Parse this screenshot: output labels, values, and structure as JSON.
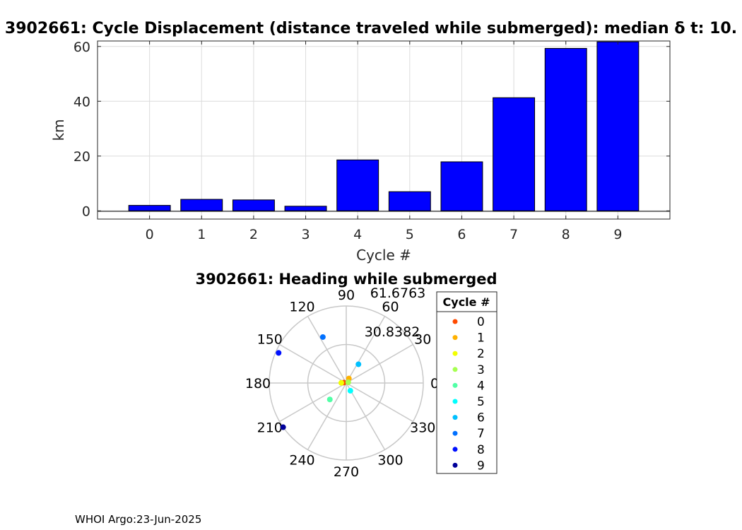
{
  "footer": "WHOI Argo:23-Jun-2025",
  "colors": {
    "bar": "#0000ff",
    "grid": "#dcdcdc",
    "polar_grid": "#c8c8c8",
    "cycle_colors": [
      "#ff4a00",
      "#ffb100",
      "#f2ff00",
      "#a6ff51",
      "#51ffa6",
      "#00ffff",
      "#00c0ff",
      "#0070ff",
      "#0010ff",
      "#00009a"
    ]
  },
  "chart_data": [
    {
      "type": "bar",
      "title": "3902661: Cycle Displacement (distance traveled while submerged):   median δ t: 10.",
      "xlabel": "Cycle #",
      "ylabel": "km",
      "categories": [
        "0",
        "1",
        "2",
        "3",
        "4",
        "5",
        "6",
        "7",
        "8",
        "9"
      ],
      "values": [
        2,
        4.2,
        4,
        1.7,
        18.6,
        7,
        17.9,
        41.3,
        59.3,
        61.7
      ],
      "xlim": [
        -1,
        10
      ],
      "ylim": [
        -3,
        62
      ],
      "yticks": [
        0,
        20,
        40,
        60
      ],
      "grid": true
    },
    {
      "type": "scatter",
      "projection": "polar",
      "title": "3902661: Heading while submerged",
      "angle_ticks": [
        "0",
        "30",
        "60",
        "90",
        "120",
        "150",
        "180",
        "210",
        "240",
        "270",
        "300",
        "330"
      ],
      "radial_ticks": [
        "30.8382",
        "61.6763"
      ],
      "rmax": 61.6763,
      "points": [
        {
          "cycle": "0",
          "angle": 170,
          "r": 2
        },
        {
          "cycle": "1",
          "angle": 60,
          "r": 4.2
        },
        {
          "cycle": "2",
          "angle": 178,
          "r": 4
        },
        {
          "cycle": "3",
          "angle": 20,
          "r": 1.7
        },
        {
          "cycle": "4",
          "angle": 225,
          "r": 18.6
        },
        {
          "cycle": "5",
          "angle": 298,
          "r": 7
        },
        {
          "cycle": "6",
          "angle": 57,
          "r": 17.9
        },
        {
          "cycle": "7",
          "angle": 117,
          "r": 41.3
        },
        {
          "cycle": "8",
          "angle": 156,
          "r": 59.3
        },
        {
          "cycle": "9",
          "angle": 215,
          "r": 61.7
        }
      ],
      "legend": {
        "title": "Cycle #",
        "entries": [
          "0",
          "1",
          "2",
          "3",
          "4",
          "5",
          "6",
          "7",
          "8",
          "9"
        ],
        "placement": "right"
      }
    }
  ]
}
